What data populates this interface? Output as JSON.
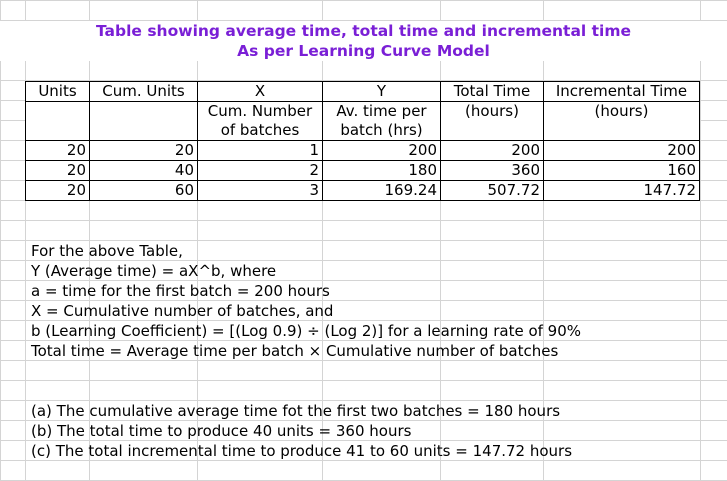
{
  "title": {
    "line1": "Table showing average time, total time and incremental time",
    "line2": "As per Learning Curve Model"
  },
  "table": {
    "headers": [
      "Units",
      "Cum. Units",
      "X",
      "Y",
      "Total Time",
      "Incremental Time"
    ],
    "subheaders_1": [
      "",
      "",
      "Cum. Number",
      "Av. time per",
      "(hours)",
      "(hours)"
    ],
    "subheaders_2": [
      "",
      "",
      "of batches",
      "batch (hrs)",
      "",
      ""
    ],
    "rows": [
      [
        "20",
        "20",
        "1",
        "200",
        "200",
        "200"
      ],
      [
        "20",
        "40",
        "2",
        "180",
        "360",
        "160"
      ],
      [
        "20",
        "60",
        "3",
        "169.24",
        "507.72",
        "147.72"
      ]
    ]
  },
  "notes": [
    "For the above Table,",
    "Y (Average time) = aX^b, where",
    "a = time for the first batch = 200 hours",
    "X = Cumulative number of batches, and",
    "b (Learning Coefficient) = [(Log 0.9) ÷ (Log 2)] for a learning rate of 90%",
    "Total time = Average time per batch × Cumulative number of batches"
  ],
  "answers": [
    "(a) The cumulative average time fot the first two batches = 180 hours",
    "(b) The total time to produce 40 units = 360 hours",
    "(c) The total incremental time to produce 41 to 60 units = 147.72 hours"
  ]
}
